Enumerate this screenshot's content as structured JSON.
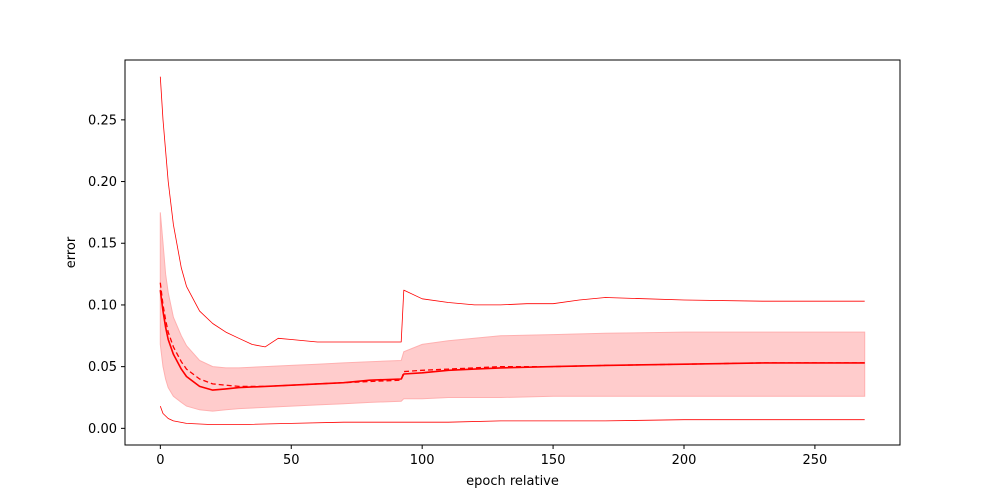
{
  "chart_data": {
    "type": "line",
    "title": "",
    "xlabel": "epoch relative",
    "ylabel": "error",
    "xlim": [
      -13.5,
      282.5
    ],
    "ylim": [
      -0.0135,
      0.2985
    ],
    "xticks": [
      0,
      50,
      100,
      150,
      200,
      250
    ],
    "xtick_labels": [
      "0",
      "50",
      "100",
      "150",
      "200",
      "250"
    ],
    "yticks": [
      0.0,
      0.05,
      0.1,
      0.15,
      0.2,
      0.25
    ],
    "ytick_labels": [
      "0.00",
      "0.05",
      "0.10",
      "0.15",
      "0.20",
      "0.25"
    ],
    "grid": false,
    "colors": {
      "line": "#ff0000",
      "band": "#ffcccc",
      "band_edge": "#ffb0b0"
    },
    "series": [
      {
        "style": "solid",
        "x": [
          0,
          1,
          2,
          3,
          5,
          8,
          10,
          15,
          20,
          25,
          30,
          40,
          50,
          60,
          70,
          80,
          92,
          93,
          100,
          110,
          120,
          130,
          150,
          170,
          200,
          230,
          269
        ],
        "y": [
          0.112,
          0.095,
          0.082,
          0.072,
          0.06,
          0.048,
          0.042,
          0.034,
          0.031,
          0.032,
          0.033,
          0.034,
          0.035,
          0.036,
          0.037,
          0.039,
          0.04,
          0.044,
          0.045,
          0.047,
          0.048,
          0.049,
          0.05,
          0.051,
          0.052,
          0.053,
          0.053
        ]
      },
      {
        "style": "dashed",
        "x": [
          0,
          1,
          2,
          3,
          5,
          8,
          10,
          15,
          20,
          25,
          30,
          40,
          50,
          60,
          70,
          80,
          92,
          93,
          100,
          110,
          120,
          130,
          150,
          170,
          200,
          230,
          269
        ],
        "y": [
          0.118,
          0.1,
          0.088,
          0.078,
          0.066,
          0.054,
          0.048,
          0.04,
          0.036,
          0.035,
          0.034,
          0.034,
          0.035,
          0.036,
          0.037,
          0.038,
          0.039,
          0.046,
          0.047,
          0.048,
          0.049,
          0.05,
          0.05,
          0.051,
          0.052,
          0.053,
          0.053
        ]
      },
      {
        "style": "thin",
        "x": [
          0,
          1,
          2,
          3,
          5,
          8,
          10,
          15,
          20,
          25,
          30,
          35,
          40,
          45,
          50,
          60,
          70,
          80,
          92,
          93,
          100,
          110,
          120,
          130,
          140,
          150,
          160,
          170,
          200,
          230,
          269
        ],
        "y": [
          0.285,
          0.25,
          0.225,
          0.2,
          0.165,
          0.13,
          0.115,
          0.095,
          0.085,
          0.078,
          0.073,
          0.068,
          0.066,
          0.073,
          0.072,
          0.07,
          0.07,
          0.07,
          0.07,
          0.112,
          0.105,
          0.102,
          0.1,
          0.1,
          0.101,
          0.101,
          0.104,
          0.106,
          0.104,
          0.103,
          0.103
        ]
      },
      {
        "style": "thin",
        "x": [
          0,
          1,
          3,
          5,
          10,
          20,
          30,
          50,
          70,
          90,
          110,
          130,
          150,
          170,
          200,
          230,
          269
        ],
        "y": [
          0.018,
          0.012,
          0.008,
          0.006,
          0.004,
          0.003,
          0.003,
          0.004,
          0.005,
          0.005,
          0.005,
          0.006,
          0.006,
          0.006,
          0.007,
          0.007,
          0.007
        ]
      }
    ],
    "band": {
      "x": [
        0,
        1,
        2,
        3,
        5,
        8,
        10,
        15,
        20,
        25,
        30,
        40,
        50,
        60,
        70,
        80,
        92,
        93,
        100,
        110,
        120,
        130,
        150,
        170,
        200,
        230,
        269
      ],
      "upper": [
        0.175,
        0.15,
        0.125,
        0.11,
        0.09,
        0.075,
        0.067,
        0.055,
        0.05,
        0.049,
        0.049,
        0.05,
        0.051,
        0.052,
        0.053,
        0.054,
        0.055,
        0.062,
        0.068,
        0.071,
        0.073,
        0.075,
        0.076,
        0.077,
        0.078,
        0.078,
        0.078
      ],
      "lower": [
        0.068,
        0.05,
        0.04,
        0.033,
        0.026,
        0.021,
        0.018,
        0.015,
        0.014,
        0.015,
        0.016,
        0.017,
        0.018,
        0.019,
        0.02,
        0.021,
        0.022,
        0.024,
        0.024,
        0.025,
        0.025,
        0.025,
        0.026,
        0.026,
        0.026,
        0.026,
        0.026
      ]
    }
  }
}
